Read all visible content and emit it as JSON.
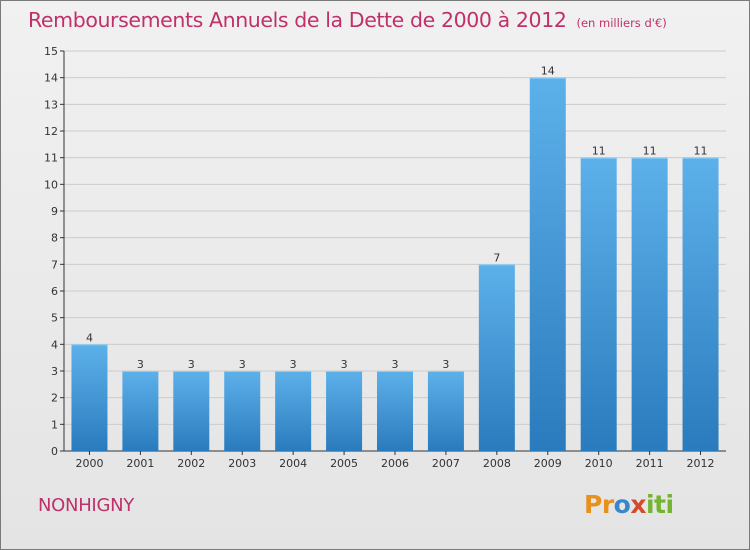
{
  "header": {
    "title": "Remboursements Annuels de la Dette de 2000 à 2012",
    "subtitle": "(en milliers d'€)"
  },
  "commune": "NONHIGNY",
  "logo": {
    "text": "Proxiti",
    "colors": [
      "#e8901c",
      "#3a86c8",
      "#74b530",
      "#d44b2a"
    ]
  },
  "colors": {
    "title": "#c0306a",
    "bar_top": "#5db1ea",
    "bar_bottom": "#2a7bbd",
    "grid": "#cccccc",
    "axis": "#333333"
  },
  "chart_data": {
    "type": "bar",
    "categories": [
      "2000",
      "2001",
      "2002",
      "2003",
      "2004",
      "2005",
      "2006",
      "2007",
      "2008",
      "2009",
      "2010",
      "2011",
      "2012"
    ],
    "values": [
      4,
      3,
      3,
      3,
      3,
      3,
      3,
      3,
      7,
      14,
      11,
      11,
      11
    ],
    "title": "Remboursements Annuels de la Dette de 2000 à 2012",
    "subtitle": "(en milliers d'€)",
    "xlabel": "",
    "ylabel": "",
    "ylim": [
      0,
      15
    ],
    "yticks": [
      0,
      1,
      2,
      3,
      4,
      5,
      6,
      7,
      8,
      9,
      10,
      11,
      12,
      13,
      14,
      15
    ],
    "grid": true,
    "data_labels": true
  }
}
